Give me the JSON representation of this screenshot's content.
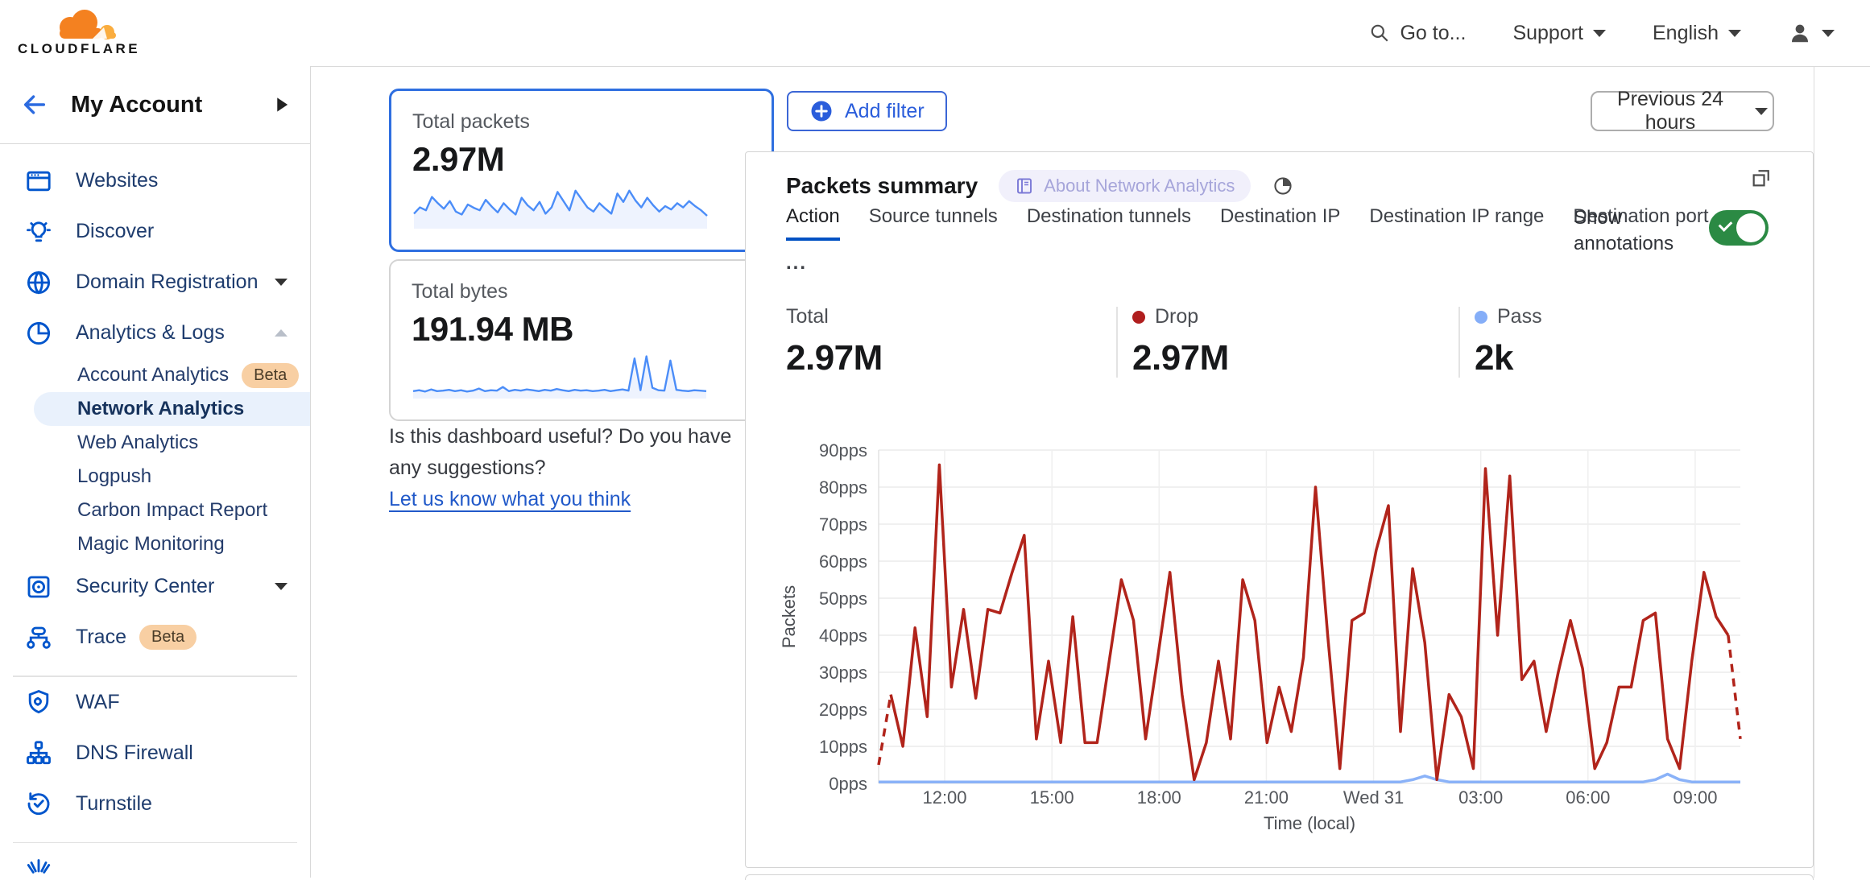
{
  "header": {
    "brand": "CLOUDFLARE",
    "go_to": "Go to...",
    "support": "Support",
    "language": "English"
  },
  "sidebar": {
    "back_label": "My Account",
    "items": [
      {
        "label": "Websites"
      },
      {
        "label": "Discover"
      },
      {
        "label": "Domain Registration",
        "caret": "down"
      },
      {
        "label": "Analytics & Logs",
        "caret": "up"
      },
      {
        "label": "Account Analytics",
        "badge": "Beta",
        "sub": true
      },
      {
        "label": "Network Analytics",
        "sub": true,
        "selected": true
      },
      {
        "label": "Web Analytics",
        "sub": true
      },
      {
        "label": "Logpush",
        "sub": true
      },
      {
        "label": "Carbon Impact Report",
        "sub": true
      },
      {
        "label": "Magic Monitoring",
        "sub": true
      },
      {
        "label": "Security Center",
        "caret": "down"
      },
      {
        "label": "Trace",
        "badge": "Beta"
      },
      {
        "label": "WAF"
      },
      {
        "label": "DNS Firewall"
      },
      {
        "label": "Turnstile"
      }
    ]
  },
  "cards": [
    {
      "title": "Total packets",
      "value": "2.97M",
      "spark": [
        30,
        45,
        38,
        70,
        55,
        42,
        60,
        35,
        28,
        52,
        44,
        38,
        63,
        47,
        33,
        55,
        40,
        28,
        68,
        50,
        38,
        58,
        30,
        45,
        82,
        60,
        38,
        85,
        65,
        45,
        35,
        55,
        42,
        30,
        78,
        58,
        85,
        62,
        45,
        68,
        50,
        35,
        48,
        40,
        55,
        45,
        60,
        48,
        38,
        25
      ]
    },
    {
      "title": "Total bytes",
      "value": "191.94 MB",
      "spark": [
        12,
        14,
        11,
        16,
        12,
        13,
        15,
        12,
        14,
        11,
        13,
        18,
        12,
        14,
        13,
        22,
        12,
        15,
        13,
        16,
        14,
        12,
        15,
        13,
        17,
        14,
        12,
        15,
        13,
        14,
        12,
        13,
        15,
        12,
        14,
        16,
        13,
        90,
        14,
        95,
        20,
        14,
        13,
        85,
        15,
        13,
        12,
        14,
        13,
        12
      ]
    }
  ],
  "feedback": {
    "question": "Is this dashboard useful? Do you have any suggestions?",
    "link": "Let us know what you think"
  },
  "filter_bar": {
    "add_filter": "Add filter",
    "time_range": "Previous 24 hours"
  },
  "panel": {
    "title": "Packets summary",
    "about_badge": "About Network Analytics",
    "tabs": [
      "Action",
      "Source tunnels",
      "Destination tunnels",
      "Destination IP",
      "Destination IP range",
      "Destination port"
    ],
    "active_tab": "Action",
    "more_tab": "...",
    "show_annotations": "Show annotations",
    "stats": [
      {
        "label": "Total",
        "value": "2.97M",
        "dot": null
      },
      {
        "label": "Drop",
        "value": "2.97M",
        "dot": "#b01e1e"
      },
      {
        "label": "Pass",
        "value": "2k",
        "dot": "#85aef8"
      }
    ]
  },
  "chart_data": {
    "type": "line",
    "title": "Packets summary",
    "xlabel": "Time (local)",
    "ylabel": "Packets",
    "ylim": [
      0,
      90
    ],
    "yticks": [
      0,
      10,
      20,
      30,
      40,
      50,
      60,
      70,
      80,
      90
    ],
    "ytick_suffix": "pps",
    "xticks": [
      "12:00",
      "15:00",
      "18:00",
      "21:00",
      "Wed 31",
      "03:00",
      "06:00",
      "09:00"
    ],
    "grid": true,
    "legend_position": "above-as-stats",
    "series": [
      {
        "name": "Pass",
        "color": "#8ab2f8",
        "values": [
          0.4,
          0.4,
          0.4,
          0.4,
          0.4,
          0.4,
          0.4,
          0.4,
          0.4,
          0.4,
          0.4,
          0.4,
          0.4,
          0.4,
          0.4,
          0.4,
          0.4,
          0.4,
          0.4,
          0.4,
          0.4,
          0.4,
          0.4,
          0.4,
          0.4,
          0.4,
          0.4,
          0.4,
          0.4,
          0.4,
          0.4,
          0.4,
          0.4,
          0.4,
          0.4,
          0.4,
          0.4,
          0.4,
          0.4,
          0.4,
          0.4,
          0.4,
          0.4,
          0.4,
          1,
          2,
          1,
          0.4,
          0.4,
          0.4,
          0.4,
          0.4,
          0.4,
          0.4,
          0.4,
          0.4,
          0.4,
          0.4,
          0.4,
          0.4,
          0.4,
          0.4,
          0.4,
          0.4,
          1,
          2.5,
          1,
          0.4,
          0.4,
          0.4,
          0.4,
          0.4
        ]
      },
      {
        "name": "Drop",
        "color": "#b1241b",
        "dashed_first_segment": true,
        "dashed_last_segment": true,
        "values": [
          5,
          24,
          10,
          42,
          18,
          86,
          26,
          47,
          23,
          47,
          46,
          57,
          67,
          12,
          33,
          11,
          45,
          11,
          11,
          33,
          55,
          44,
          12,
          34,
          57,
          24,
          1,
          11,
          33,
          12,
          55,
          44,
          11,
          26,
          14,
          34,
          80,
          40,
          4,
          44,
          46,
          63,
          75,
          14,
          58,
          38,
          1,
          24,
          18,
          4,
          85,
          40,
          83,
          28,
          33,
          14,
          30,
          44,
          31,
          4,
          11,
          26,
          26,
          44,
          46,
          12,
          4,
          33,
          57,
          45,
          40,
          12
        ]
      }
    ]
  },
  "colors": {
    "accent_blue": "#0051c3",
    "drop_red": "#b1241b",
    "pass_blue": "#8ab2f8",
    "toggle_green": "#2b8a44",
    "beta_badge_bg": "#f8cfa3",
    "selected_nav_bg": "#e9f1fc",
    "card_selected_border": "#2f6fe0"
  }
}
